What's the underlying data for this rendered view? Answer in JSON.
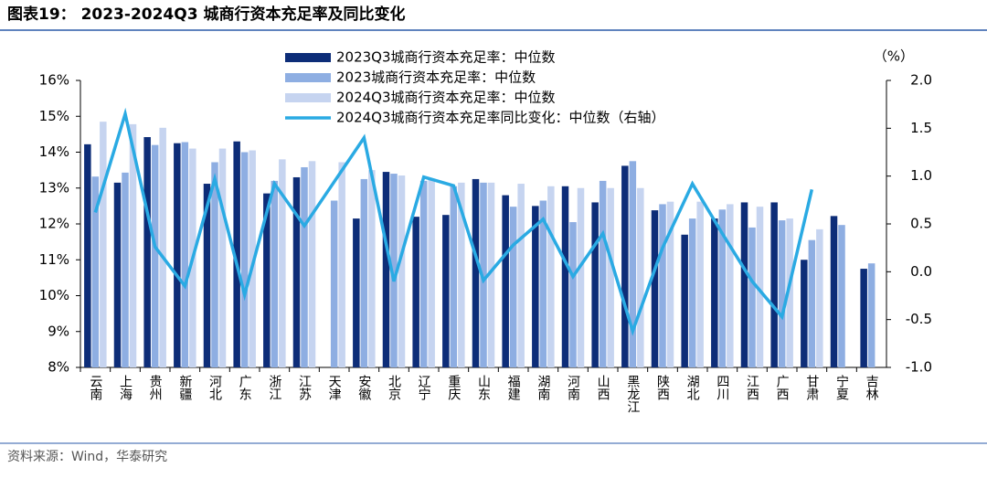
{
  "chart_data": {
    "type": "bar",
    "title": "图表19：  2023-2024Q3 城商行资本充足率及同比变化",
    "source": "资料来源：Wind，华泰研究",
    "y2label": "（%）",
    "categories": [
      "云南",
      "上海",
      "贵州",
      "新疆",
      "河北",
      "广东",
      "浙江",
      "江苏",
      "天津",
      "安徽",
      "北京",
      "辽宁",
      "重庆",
      "山东",
      "福建",
      "湖南",
      "河南",
      "山西",
      "黑龙江",
      "陕西",
      "湖北",
      "四川",
      "江西",
      "广西",
      "甘肃",
      "宁夏",
      "吉林"
    ],
    "series": [
      {
        "name": "2023Q3城商行资本充足率：中位数",
        "color": "#0d2d78",
        "values": [
          14.22,
          13.15,
          14.42,
          14.25,
          13.12,
          14.3,
          12.85,
          13.3,
          null,
          12.15,
          13.45,
          12.2,
          12.25,
          13.25,
          12.8,
          12.5,
          13.05,
          12.6,
          13.62,
          12.38,
          11.7,
          12.15,
          12.6,
          12.6,
          11.0,
          12.22,
          10.75
        ]
      },
      {
        "name": "2023城商行资本充足率：中位数",
        "color": "#8eaee2",
        "values": [
          13.32,
          13.43,
          14.2,
          14.28,
          13.72,
          14.0,
          13.2,
          13.58,
          12.65,
          13.25,
          13.4,
          13.2,
          13.05,
          13.15,
          12.48,
          12.65,
          12.05,
          13.2,
          13.75,
          12.55,
          12.15,
          12.4,
          11.9,
          12.1,
          11.55,
          11.97,
          10.9
        ]
      },
      {
        "name": "2024Q3城商行资本充足率：中位数",
        "color": "#c6d4f0",
        "values": [
          14.85,
          14.78,
          14.68,
          14.1,
          14.1,
          14.05,
          13.8,
          13.75,
          13.72,
          13.5,
          13.35,
          13.25,
          13.15,
          13.15,
          13.12,
          13.05,
          13.0,
          13.0,
          13.0,
          12.62,
          12.62,
          12.55,
          12.48,
          12.15,
          11.85,
          null,
          null
        ]
      },
      {
        "name": "2024Q3城商行资本充足率同比变化：中位数（右轴）",
        "color": "#2aaae3",
        "type": "line",
        "axis": "y2",
        "values": [
          0.62,
          1.65,
          0.26,
          -0.15,
          0.97,
          -0.24,
          0.92,
          0.48,
          0.94,
          1.4,
          -0.1,
          0.99,
          0.9,
          -0.09,
          0.28,
          0.55,
          -0.05,
          0.4,
          -0.62,
          0.25,
          0.92,
          0.4,
          -0.1,
          -0.47,
          0.86,
          null,
          null
        ]
      }
    ],
    "ylim": [
      8,
      16
    ],
    "yticks": [
      {
        "value": 8,
        "label": "8%"
      },
      {
        "value": 9,
        "label": "9%"
      },
      {
        "value": 10,
        "label": "10%"
      },
      {
        "value": 11,
        "label": "11%"
      },
      {
        "value": 12,
        "label": "12%"
      },
      {
        "value": 13,
        "label": "13%"
      },
      {
        "value": 14,
        "label": "14%"
      },
      {
        "value": 15,
        "label": "15%"
      },
      {
        "value": 16,
        "label": "16%"
      }
    ],
    "y2lim": [
      -1,
      2
    ],
    "y2ticks": [
      {
        "value": -1,
        "label": "-1.0"
      },
      -0.5,
      {
        "value": 0,
        "label": "0.0"
      },
      0.5,
      {
        "value": 1,
        "label": "1.0"
      },
      1.5,
      {
        "value": 2,
        "label": "2.0"
      }
    ]
  }
}
